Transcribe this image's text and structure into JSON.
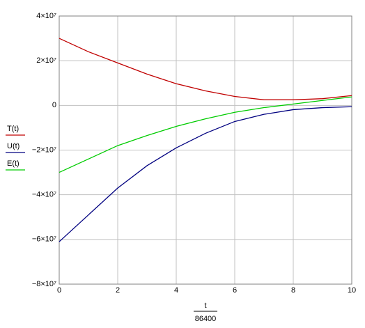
{
  "chart_data": {
    "type": "line",
    "xlabel_numerator": "t",
    "xlabel_denominator": "86400",
    "x": [
      0,
      1,
      2,
      3,
      4,
      5,
      6,
      7,
      8,
      9,
      10
    ],
    "series": [
      {
        "name": "T(t)",
        "color": "#c00000",
        "values": [
          30000000,
          24000000,
          19000000,
          14000000,
          9700000,
          6500000,
          4000000,
          2500000,
          2500000,
          3000000,
          4400000
        ]
      },
      {
        "name": "U(t)",
        "color": "#000080",
        "values": [
          -61000000,
          -49000000,
          -37000000,
          -27000000,
          -19000000,
          -12500000,
          -7200000,
          -4000000,
          -1900000,
          -1000000,
          -600000
        ]
      },
      {
        "name": "E(t)",
        "color": "#00cc00",
        "values": [
          -30000000,
          -24000000,
          -18000000,
          -13500000,
          -9400000,
          -6000000,
          -3100000,
          -1000000,
          600000,
          2200000,
          3800000
        ]
      }
    ],
    "xlim": [
      0,
      10
    ],
    "xticks": [
      0,
      2,
      4,
      6,
      8,
      10
    ],
    "ylim": [
      -80000000,
      40000000
    ],
    "yticks": [
      {
        "value": -80000000,
        "label": "−8×10⁷"
      },
      {
        "value": -60000000,
        "label": "−6×10⁷"
      },
      {
        "value": -40000000,
        "label": "−4×10⁷"
      },
      {
        "value": -20000000,
        "label": "−2×10⁷"
      },
      0,
      {
        "value": 20000000,
        "label": "2×10⁷"
      },
      {
        "value": 40000000,
        "label": "4×10⁷"
      }
    ],
    "grid": true
  }
}
